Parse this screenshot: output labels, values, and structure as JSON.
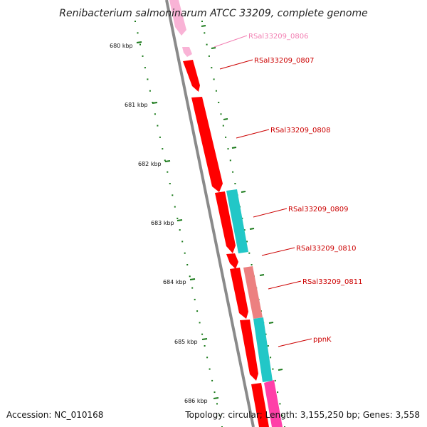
{
  "title": "Renibacterium salmoninarum ATCC 33209, complete genome",
  "footer": {
    "accession": "Accession: NC_010168",
    "topology": "Topology: circular; Length: 3,155,250 bp; Genes: 3,558"
  },
  "colors": {
    "backbone": "#8a8a8a",
    "tick": "#1a7a1a",
    "label_red": "#cc0000",
    "label_pink": "#f27fb2"
  },
  "kbp_labels": [
    "680 kbp",
    "681 kbp",
    "682 kbp",
    "683 kbp",
    "684 kbp",
    "685 kbp",
    "686 kbp"
  ],
  "genes": [
    {
      "name": "RSal33209_0806",
      "color": "#f9b3d6",
      "label_color": "#f27fb2"
    },
    {
      "name": "RSal33209_0807",
      "color": "#ff0000",
      "label_color": "#cc0000"
    },
    {
      "name": "RSal33209_0808",
      "color": "#ff0000",
      "label_color": "#cc0000"
    },
    {
      "name": "RSal33209_0809",
      "color": "#22c7c7",
      "label_color": "#cc0000"
    },
    {
      "name": "RSal33209_0810",
      "color": "#ff0000",
      "label_color": "#cc0000"
    },
    {
      "name": "RSal33209_0811",
      "color": "#ec8080",
      "label_color": "#cc0000"
    },
    {
      "name": "ppnK",
      "color": "#22c7c7",
      "label_color": "#cc0000"
    }
  ]
}
